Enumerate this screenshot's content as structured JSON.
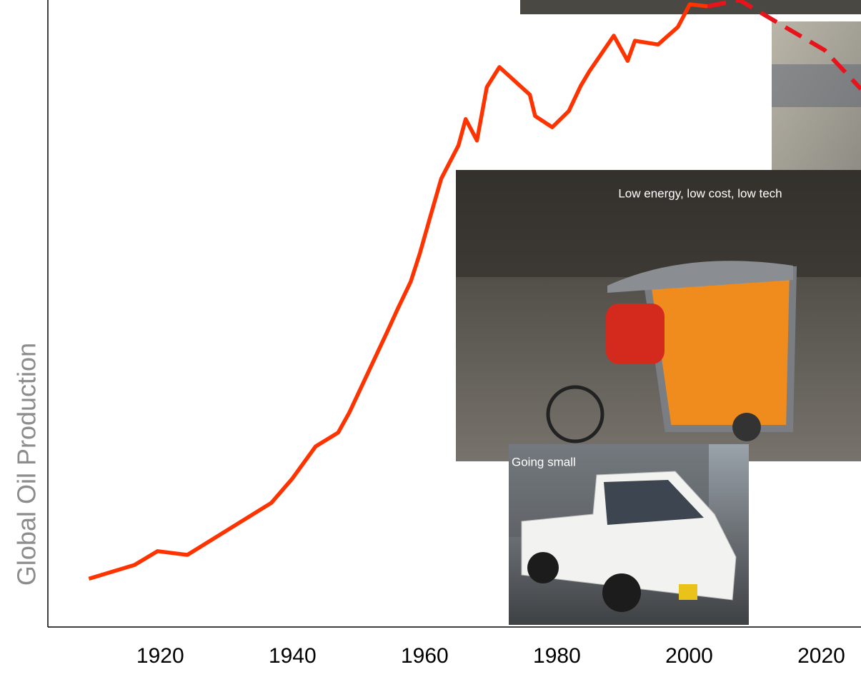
{
  "chart_data": {
    "type": "line",
    "y_label": "Global Oil Production",
    "xlim": [
      1903,
      2026
    ],
    "xticks": [
      1920,
      1940,
      1960,
      1980,
      2000,
      2020
    ],
    "ylim": [
      0,
      100
    ],
    "series": [
      {
        "color": "#ff3300",
        "dashed": false,
        "x": [
          1909.2,
          1916.1,
          1919.6,
          1924.1,
          1936.8,
          1940.0,
          1943.5,
          1946.9,
          1948.6,
          1954.3,
          1955.9,
          1957.9,
          1959.3,
          1960.8,
          1962.5,
          1965.1,
          1966.2,
          1967.9,
          1969.4,
          1971.3,
          1975.9,
          1976.7,
          1979.3,
          1981.8,
          1983.6,
          1984.9,
          1988.6,
          1990.7,
          1991.8,
          1995.3,
          1998.3,
          2000.1,
          2002.8
        ],
        "values": [
          7.7,
          9.9,
          12.1,
          11.5,
          19.8,
          23.7,
          28.8,
          31.0,
          34.2,
          47.0,
          50.7,
          55.1,
          59.7,
          65.3,
          71.5,
          76.8,
          81.0,
          77.6,
          86.1,
          89.3,
          84.9,
          81.5,
          79.7,
          82.3,
          86.3,
          88.6,
          94.3,
          90.3,
          93.5,
          92.9,
          95.7,
          99.3,
          99.0
        ]
      },
      {
        "color": "#e8141c",
        "dashed": true,
        "x": [
          2002.8,
          2007.6,
          2014.0,
          2020.5,
          2026.0
        ],
        "values": [
          99.0,
          100.0,
          96.0,
          92.0,
          85.8
        ]
      }
    ],
    "annotations": [
      "Low energy, low cost, low tech",
      "Going small"
    ]
  }
}
